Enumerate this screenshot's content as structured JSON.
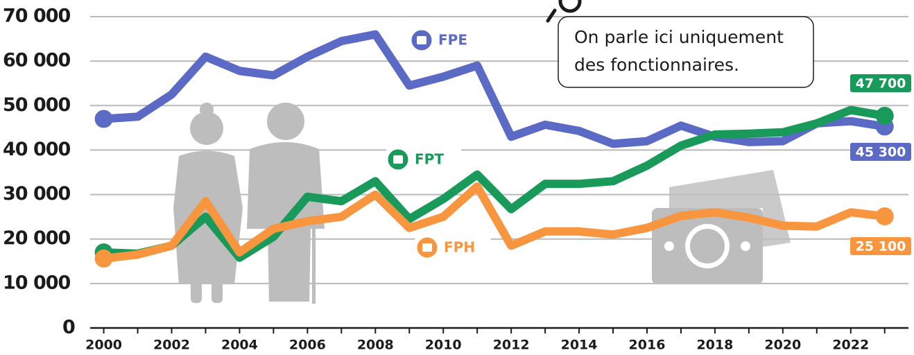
{
  "chart_data": {
    "type": "line",
    "x": [
      2000,
      2001,
      2002,
      2003,
      2004,
      2005,
      2006,
      2007,
      2008,
      2009,
      2010,
      2011,
      2012,
      2013,
      2014,
      2015,
      2016,
      2017,
      2018,
      2019,
      2020,
      2021,
      2022,
      2023
    ],
    "xlim": [
      1999.6,
      2023.7
    ],
    "xticks": [
      2000,
      2002,
      2004,
      2006,
      2008,
      2010,
      2012,
      2014,
      2016,
      2018,
      2020,
      2022
    ],
    "ylim": [
      0,
      70000
    ],
    "yticks": [
      0,
      {
        "value": 10000,
        "label": "10 000"
      },
      {
        "value": 20000,
        "label": "20 000"
      },
      {
        "value": 30000,
        "label": "30 000"
      },
      {
        "value": 40000,
        "label": "40 000"
      },
      {
        "value": 50000,
        "label": "50 000"
      },
      {
        "value": 60000,
        "label": "60 000"
      },
      {
        "value": 70000,
        "label": "70 000"
      }
    ],
    "grid": true,
    "annotation": [
      "On parle ici uniquement",
      "des fonctionnaires."
    ],
    "series": [
      {
        "name": "FPE",
        "color": "#5b6ac4",
        "values": [
          47000,
          47500,
          52500,
          61000,
          57800,
          56800,
          61000,
          64500,
          66000,
          54500,
          56500,
          59000,
          43000,
          45700,
          44300,
          41400,
          42000,
          45500,
          43000,
          41800,
          42000,
          46000,
          46500,
          45300
        ],
        "value_labels": [
          null,
          null,
          null,
          null,
          null,
          null,
          null,
          null,
          null,
          null,
          null,
          null,
          null,
          null,
          null,
          null,
          null,
          null,
          null,
          null,
          null,
          null,
          null,
          "45 300"
        ]
      },
      {
        "name": "FPT",
        "color": "#1a9a5a",
        "values": [
          17000,
          16700,
          18500,
          25000,
          15800,
          20500,
          29500,
          28500,
          33000,
          24500,
          29000,
          34500,
          26700,
          32400,
          32400,
          33000,
          36500,
          41000,
          43500,
          43700,
          44000,
          46000,
          49000,
          47700
        ],
        "value_labels": [
          null,
          null,
          null,
          null,
          null,
          null,
          null,
          null,
          null,
          null,
          null,
          null,
          null,
          null,
          null,
          null,
          null,
          null,
          null,
          null,
          null,
          null,
          null,
          "47 700"
        ]
      },
      {
        "name": "FPH",
        "color": "#f7963f",
        "values": [
          15600,
          16500,
          18500,
          28500,
          17000,
          22300,
          24000,
          25000,
          30000,
          22500,
          25000,
          31800,
          18500,
          21700,
          21700,
          21000,
          22500,
          25200,
          26000,
          24800,
          23000,
          22800,
          26000,
          25100
        ],
        "value_labels": [
          null,
          null,
          null,
          null,
          null,
          null,
          null,
          null,
          null,
          null,
          null,
          null,
          null,
          null,
          null,
          null,
          null,
          null,
          null,
          null,
          null,
          null,
          null,
          "25 100"
        ]
      }
    ]
  }
}
